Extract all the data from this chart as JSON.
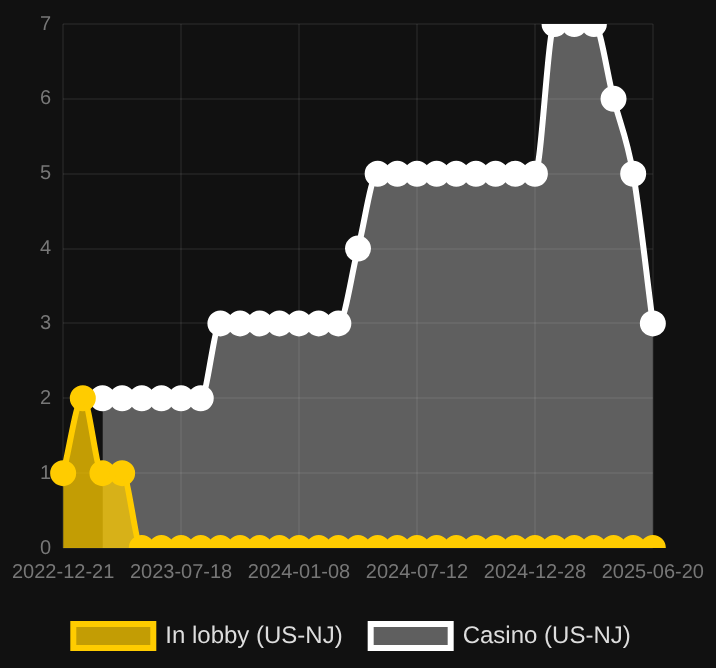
{
  "chart_data": {
    "type": "area",
    "categories": [
      "2022-12-21",
      null,
      null,
      null,
      null,
      null,
      "2023-07-18",
      null,
      null,
      null,
      null,
      null,
      "2024-01-08",
      null,
      null,
      null,
      null,
      null,
      "2024-07-12",
      null,
      null,
      null,
      null,
      null,
      "2024-12-28",
      null,
      null,
      null,
      null,
      null,
      "2025-06-20"
    ],
    "series": [
      {
        "name": "In lobby (US-NJ)",
        "color": "#ffcc00",
        "values": [
          1,
          2,
          1,
          1,
          0,
          0,
          0,
          0,
          0,
          0,
          0,
          0,
          0,
          0,
          0,
          0,
          0,
          0,
          0,
          0,
          0,
          0,
          0,
          0,
          0,
          0,
          0,
          0,
          0,
          0,
          0
        ]
      },
      {
        "name": "Casino (US-NJ)",
        "color": "#ffffff",
        "values": [
          null,
          null,
          2,
          2,
          2,
          2,
          2,
          2,
          3,
          3,
          3,
          3,
          3,
          3,
          3,
          4,
          5,
          5,
          5,
          5,
          5,
          5,
          5,
          5,
          5,
          7,
          7,
          7,
          6,
          5,
          3
        ]
      }
    ],
    "ylim": [
      0,
      7
    ],
    "yticks": [
      0,
      1,
      2,
      3,
      4,
      5,
      6,
      7
    ],
    "grid": true,
    "legend": "bottom",
    "marker": "circle"
  }
}
